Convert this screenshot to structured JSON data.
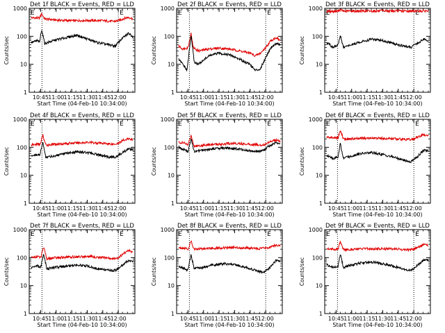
{
  "colors": {
    "background": "#ffffff",
    "axis": "#000000",
    "events": "#000000",
    "lld": "#e00000"
  },
  "chart_data": [
    {
      "type": "line",
      "title": "Det 1f BLACK = Events, RED = LLD",
      "xlabel": "Start Time (04-Feb-10 10:34:00)",
      "ylabel": "Counts/sec",
      "yscale": "log",
      "ylim": [
        1,
        1000
      ],
      "ytick_labels": [
        "1",
        "10",
        "100",
        "1000"
      ],
      "xlim_minutes_after_start": [
        0,
        102
      ],
      "xtick_labels": [
        "10:45",
        "11:00",
        "11:15",
        "11:30",
        "11:45",
        "12:00"
      ],
      "marker_labels": [
        "E",
        "E"
      ],
      "marker_times": [
        "10:45",
        "12:00"
      ],
      "series": [
        {
          "color": "#e00000",
          "x": [
            "10:36",
            "10:42",
            "10:44",
            "10:46",
            "10:49",
            "11:00",
            "11:15",
            "11:30",
            "11:45",
            "11:55",
            "12:00",
            "12:05",
            "12:10",
            "12:14"
          ],
          "values": [
            460,
            450,
            440,
            650,
            420,
            380,
            360,
            370,
            360,
            340,
            360,
            430,
            480,
            420
          ]
        },
        {
          "color": "#000000",
          "x": [
            "10:36",
            "10:42",
            "10:44",
            "10:46",
            "10:49",
            "11:00",
            "11:10",
            "11:20",
            "11:30",
            "11:40",
            "11:50",
            "11:57",
            "12:03",
            "12:10",
            "12:14"
          ],
          "values": [
            60,
            70,
            60,
            180,
            55,
            75,
            90,
            110,
            80,
            60,
            50,
            45,
            80,
            130,
            100
          ]
        }
      ]
    },
    {
      "type": "line",
      "title": "Det 2f BLACK = Events, RED = LLD",
      "xlabel": "Start Time (04-Feb-10 10:34:00)",
      "ylabel": "Counts/sec",
      "yscale": "log",
      "ylim": [
        1,
        1000
      ],
      "ytick_labels": [
        "1",
        "10",
        "100",
        "1000"
      ],
      "xlim_minutes_after_start": [
        0,
        102
      ],
      "xtick_labels": [
        "10:45",
        "11:00",
        "11:15",
        "11:30",
        "11:45",
        "12:00"
      ],
      "marker_labels": [
        "E",
        "E"
      ],
      "marker_times": [
        "10:45",
        "12:00"
      ],
      "series": [
        {
          "color": "#e00000",
          "x": [
            "10:36",
            "10:40",
            "10:45",
            "10:48",
            "10:50",
            "10:55",
            "11:05",
            "11:15",
            "11:25",
            "11:35",
            "11:45",
            "11:50",
            "11:55",
            "12:00",
            "12:05",
            "12:10",
            "12:14"
          ],
          "values": [
            45,
            35,
            40,
            130,
            40,
            30,
            35,
            38,
            35,
            30,
            25,
            20,
            25,
            40,
            70,
            90,
            70
          ]
        },
        {
          "color": "#000000",
          "x": [
            "10:36",
            "10:40",
            "10:44",
            "10:48",
            "10:51",
            "10:55",
            "11:05",
            "11:15",
            "11:25",
            "11:35",
            "11:45",
            "11:50",
            "11:55",
            "12:00",
            "12:05",
            "12:10",
            "12:14"
          ],
          "values": [
            15,
            10,
            6,
            110,
            12,
            10,
            20,
            25,
            22,
            15,
            10,
            6,
            7,
            18,
            40,
            55,
            50
          ]
        }
      ]
    },
    {
      "type": "line",
      "title": "Det 3f BLACK = Events, RED = LLD",
      "xlabel": "Start Time (04-Feb-10 10:34:00)",
      "ylabel": "Counts/sec",
      "yscale": "log",
      "ylim": [
        1,
        1000
      ],
      "ytick_labels": [
        "1",
        "10",
        "100",
        "1000"
      ],
      "xlim_minutes_after_start": [
        0,
        102
      ],
      "xtick_labels": [
        "10:45",
        "11:00",
        "11:15",
        "11:30",
        "11:45",
        "12:00"
      ],
      "marker_labels": [
        "E",
        "E"
      ],
      "marker_times": [
        "10:45",
        "12:00"
      ],
      "series": [
        {
          "color": "#e00000",
          "x": [
            "10:36",
            "10:46",
            "10:49",
            "10:52",
            "11:00",
            "11:30",
            "12:00",
            "12:14"
          ],
          "values": [
            780,
            780,
            900,
            790,
            800,
            800,
            800,
            810
          ]
        },
        {
          "color": "#000000",
          "x": [
            "10:36",
            "10:42",
            "10:47",
            "10:49",
            "10:52",
            "11:00",
            "11:10",
            "11:20",
            "11:30",
            "11:40",
            "11:50",
            "11:57",
            "12:03",
            "12:10",
            "12:14"
          ],
          "values": [
            60,
            40,
            50,
            110,
            40,
            50,
            65,
            80,
            70,
            55,
            45,
            40,
            55,
            80,
            70
          ]
        }
      ]
    },
    {
      "type": "line",
      "title": "Det 4f BLACK = Events, RED = LLD",
      "xlabel": "Start Time (04-Feb-10 10:34:00)",
      "ylabel": "Counts/sec",
      "yscale": "log",
      "ylim": [
        1,
        1000
      ],
      "ytick_labels": [
        "1",
        "10",
        "100",
        "1000"
      ],
      "xlim_minutes_after_start": [
        0,
        102
      ],
      "xtick_labels": [
        "10:45",
        "11:00",
        "11:15",
        "11:30",
        "11:45",
        "12:00"
      ],
      "marker_labels": [
        "E",
        "E"
      ],
      "marker_times": [
        "10:45",
        "12:00"
      ],
      "series": [
        {
          "color": "#e00000",
          "x": [
            "10:36",
            "10:42",
            "10:45",
            "10:47",
            "10:50",
            "11:00",
            "11:15",
            "11:30",
            "11:45",
            "11:55",
            "12:00",
            "12:05",
            "12:10",
            "12:14"
          ],
          "values": [
            120,
            130,
            130,
            280,
            120,
            130,
            140,
            150,
            140,
            130,
            140,
            180,
            200,
            190
          ]
        },
        {
          "color": "#000000",
          "x": [
            "10:36",
            "10:42",
            "10:44",
            "10:47",
            "10:50",
            "11:00",
            "11:10",
            "11:20",
            "11:30",
            "11:40",
            "11:50",
            "11:57",
            "12:03",
            "12:10",
            "12:14"
          ],
          "values": [
            50,
            55,
            50,
            150,
            45,
            50,
            60,
            70,
            65,
            55,
            45,
            45,
            60,
            90,
            80
          ]
        }
      ]
    },
    {
      "type": "line",
      "title": "Det 5f BLACK = Events, RED = LLD",
      "xlabel": "Start Time (04-Feb-10 10:34:00)",
      "ylabel": "Counts/sec",
      "yscale": "log",
      "ylim": [
        1,
        1000
      ],
      "ytick_labels": [
        "1",
        "10",
        "100",
        "1000"
      ],
      "xlim_minutes_after_start": [
        0,
        102
      ],
      "xtick_labels": [
        "10:45",
        "11:00",
        "11:15",
        "11:30",
        "11:45",
        "12:00"
      ],
      "marker_labels": [
        "E",
        "E"
      ],
      "marker_times": [
        "10:45",
        "12:00"
      ],
      "series": [
        {
          "color": "#e00000",
          "x": [
            "10:36",
            "10:42",
            "10:45",
            "10:48",
            "10:51",
            "11:00",
            "11:15",
            "11:30",
            "11:45",
            "11:55",
            "12:00",
            "12:05",
            "12:10",
            "12:14"
          ],
          "values": [
            150,
            140,
            120,
            270,
            110,
            120,
            130,
            140,
            130,
            120,
            130,
            170,
            180,
            160
          ]
        },
        {
          "color": "#000000",
          "x": [
            "10:36",
            "10:42",
            "10:45",
            "10:48",
            "10:51",
            "11:00",
            "11:10",
            "11:20",
            "11:30",
            "11:40",
            "11:50",
            "11:57",
            "12:03",
            "12:10",
            "12:14"
          ],
          "values": [
            100,
            80,
            70,
            200,
            70,
            80,
            90,
            95,
            90,
            80,
            70,
            75,
            110,
            150,
            130
          ]
        }
      ]
    },
    {
      "type": "line",
      "title": "Det 6f BLACK = Events, RED = LLD",
      "xlabel": "Start Time (04-Feb-10 10:34:00)",
      "ylabel": "Counts/sec",
      "yscale": "log",
      "ylim": [
        1,
        1000
      ],
      "ytick_labels": [
        "1",
        "10",
        "100",
        "1000"
      ],
      "xlim_minutes_after_start": [
        0,
        102
      ],
      "xtick_labels": [
        "10:45",
        "11:00",
        "11:15",
        "11:30",
        "11:45",
        "12:00"
      ],
      "marker_labels": [
        "E",
        "E"
      ],
      "marker_times": [
        "10:45",
        "12:00"
      ],
      "series": [
        {
          "color": "#e00000",
          "x": [
            "10:36",
            "10:42",
            "10:47",
            "10:49",
            "10:52",
            "11:00",
            "11:15",
            "11:30",
            "11:45",
            "11:55",
            "12:00",
            "12:05",
            "12:10",
            "12:14"
          ],
          "values": [
            230,
            220,
            220,
            420,
            200,
            200,
            210,
            210,
            200,
            190,
            200,
            240,
            280,
            270
          ]
        },
        {
          "color": "#000000",
          "x": [
            "10:36",
            "10:42",
            "10:47",
            "10:49",
            "10:52",
            "11:00",
            "11:10",
            "11:20",
            "11:30",
            "11:40",
            "11:50",
            "11:57",
            "12:03",
            "12:10",
            "12:14"
          ],
          "values": [
            50,
            40,
            45,
            140,
            40,
            50,
            60,
            65,
            55,
            45,
            35,
            30,
            45,
            80,
            75
          ]
        }
      ]
    },
    {
      "type": "line",
      "title": "Det 7f BLACK = Events, RED = LLD",
      "xlabel": "Start Time (04-Feb-10 10:34:00)",
      "ylabel": "Counts/sec",
      "yscale": "log",
      "ylim": [
        1,
        1000
      ],
      "ytick_labels": [
        "1",
        "10",
        "100",
        "1000"
      ],
      "xlim_minutes_after_start": [
        0,
        102
      ],
      "xtick_labels": [
        "10:45",
        "11:00",
        "11:15",
        "11:30",
        "11:45",
        "12:00"
      ],
      "marker_labels": [
        "E",
        "E"
      ],
      "marker_times": [
        "10:45",
        "12:00"
      ],
      "series": [
        {
          "color": "#e00000",
          "x": [
            "10:36",
            "10:42",
            "10:45",
            "10:48",
            "10:51",
            "11:00",
            "11:15",
            "11:30",
            "11:45",
            "11:55",
            "12:00",
            "12:05",
            "12:10",
            "12:14"
          ],
          "values": [
            100,
            110,
            100,
            230,
            90,
            100,
            105,
            110,
            100,
            90,
            100,
            140,
            180,
            160
          ]
        },
        {
          "color": "#000000",
          "x": [
            "10:36",
            "10:42",
            "10:45",
            "10:48",
            "10:51",
            "11:00",
            "11:10",
            "11:20",
            "11:30",
            "11:40",
            "11:50",
            "11:57",
            "12:03",
            "12:10",
            "12:14"
          ],
          "values": [
            45,
            50,
            45,
            130,
            40,
            45,
            50,
            55,
            50,
            40,
            35,
            35,
            50,
            80,
            75
          ]
        }
      ]
    },
    {
      "type": "line",
      "title": "Det 8f BLACK = Events, RED = LLD",
      "xlabel": "Start Time (04-Feb-10 10:34:00)",
      "ylabel": "Counts/sec",
      "yscale": "log",
      "ylim": [
        1,
        1000
      ],
      "ytick_labels": [
        "1",
        "10",
        "100",
        "1000"
      ],
      "xlim_minutes_after_start": [
        0,
        102
      ],
      "xtick_labels": [
        "10:45",
        "11:00",
        "11:15",
        "11:30",
        "11:45",
        "12:00"
      ],
      "marker_labels": [
        "E",
        "E"
      ],
      "marker_times": [
        "10:45",
        "12:00"
      ],
      "series": [
        {
          "color": "#e00000",
          "x": [
            "10:36",
            "10:42",
            "10:45",
            "10:48",
            "10:51",
            "11:00",
            "11:15",
            "11:30",
            "11:45",
            "11:55",
            "12:00",
            "12:05",
            "12:10",
            "12:14"
          ],
          "values": [
            230,
            220,
            200,
            380,
            200,
            210,
            220,
            230,
            220,
            210,
            220,
            240,
            280,
            250
          ]
        },
        {
          "color": "#000000",
          "x": [
            "10:36",
            "10:42",
            "10:45",
            "10:48",
            "10:51",
            "11:00",
            "11:10",
            "11:20",
            "11:30",
            "11:40",
            "11:50",
            "11:57",
            "12:03",
            "12:10",
            "12:14"
          ],
          "values": [
            50,
            40,
            35,
            130,
            40,
            45,
            55,
            60,
            55,
            45,
            35,
            30,
            40,
            80,
            70
          ]
        }
      ]
    },
    {
      "type": "line",
      "title": "Det 9f BLACK = Events, RED = LLD",
      "xlabel": "Start Time (04-Feb-10 10:34:00)",
      "ylabel": "Counts/sec",
      "yscale": "log",
      "ylim": [
        1,
        1000
      ],
      "ytick_labels": [
        "1",
        "10",
        "100",
        "1000"
      ],
      "xlim_minutes_after_start": [
        0,
        102
      ],
      "xtick_labels": [
        "10:45",
        "11:00",
        "11:15",
        "11:30",
        "11:45",
        "12:00"
      ],
      "marker_labels": [
        "E",
        "E"
      ],
      "marker_times": [
        "10:45",
        "12:00"
      ],
      "series": [
        {
          "color": "#e00000",
          "x": [
            "10:36",
            "10:42",
            "10:47",
            "10:49",
            "10:52",
            "11:00",
            "11:15",
            "11:30",
            "11:45",
            "11:55",
            "12:00",
            "12:05",
            "12:10",
            "12:14"
          ],
          "values": [
            210,
            200,
            200,
            380,
            190,
            200,
            205,
            210,
            200,
            190,
            200,
            240,
            290,
            270
          ]
        },
        {
          "color": "#000000",
          "x": [
            "10:36",
            "10:42",
            "10:47",
            "10:49",
            "10:52",
            "11:00",
            "11:10",
            "11:20",
            "11:30",
            "11:40",
            "11:50",
            "11:57",
            "12:03",
            "12:10",
            "12:14"
          ],
          "values": [
            55,
            45,
            50,
            140,
            45,
            55,
            65,
            70,
            60,
            50,
            40,
            35,
            50,
            85,
            80
          ]
        }
      ]
    }
  ]
}
